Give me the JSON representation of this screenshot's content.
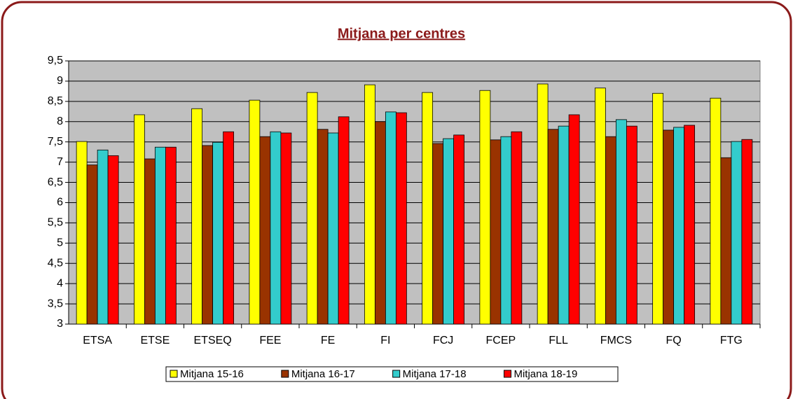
{
  "chart_data": {
    "type": "bar",
    "title": "Mitjana per centres",
    "categories": [
      "ETSA",
      "ETSE",
      "ETSEQ",
      "FEE",
      "FE",
      "FI",
      "FCJ",
      "FCEP",
      "FLL",
      "FMCS",
      "FQ",
      "FTG"
    ],
    "series": [
      {
        "name": "Mitjana 15-16",
        "color": "#ffff00",
        "values": [
          7.51,
          8.17,
          8.32,
          8.53,
          8.72,
          8.91,
          8.72,
          8.77,
          8.93,
          8.83,
          8.7,
          8.58
        ]
      },
      {
        "name": "Mitjana 16-17",
        "color": "#993300",
        "values": [
          6.93,
          7.08,
          7.41,
          7.63,
          7.81,
          8.0,
          7.46,
          7.55,
          7.81,
          7.63,
          7.79,
          7.11
        ]
      },
      {
        "name": "Mitjana 17-18",
        "color": "#33cccc",
        "values": [
          7.3,
          7.37,
          7.49,
          7.75,
          7.72,
          8.24,
          7.58,
          7.63,
          7.89,
          8.05,
          7.86,
          7.51
        ]
      },
      {
        "name": "Mitjana 18-19",
        "color": "#ff0000",
        "values": [
          7.16,
          7.37,
          7.75,
          7.72,
          8.12,
          8.22,
          7.67,
          7.75,
          8.17,
          7.89,
          7.91,
          7.56
        ]
      }
    ],
    "ylim": [
      3,
      9.5
    ],
    "yticks": [
      3,
      {
        "value": 3.5,
        "label": "3,5"
      },
      4,
      {
        "value": 4.5,
        "label": "4,5"
      },
      5,
      {
        "value": 5.5,
        "label": "5,5"
      },
      6,
      {
        "value": 6.5,
        "label": "6,5"
      },
      7,
      {
        "value": 7.5,
        "label": "7,5"
      },
      8,
      {
        "value": 8.5,
        "label": "8,5"
      },
      9,
      {
        "value": 9.5,
        "label": "9,5"
      }
    ],
    "grid": true,
    "legend": "bottom"
  }
}
